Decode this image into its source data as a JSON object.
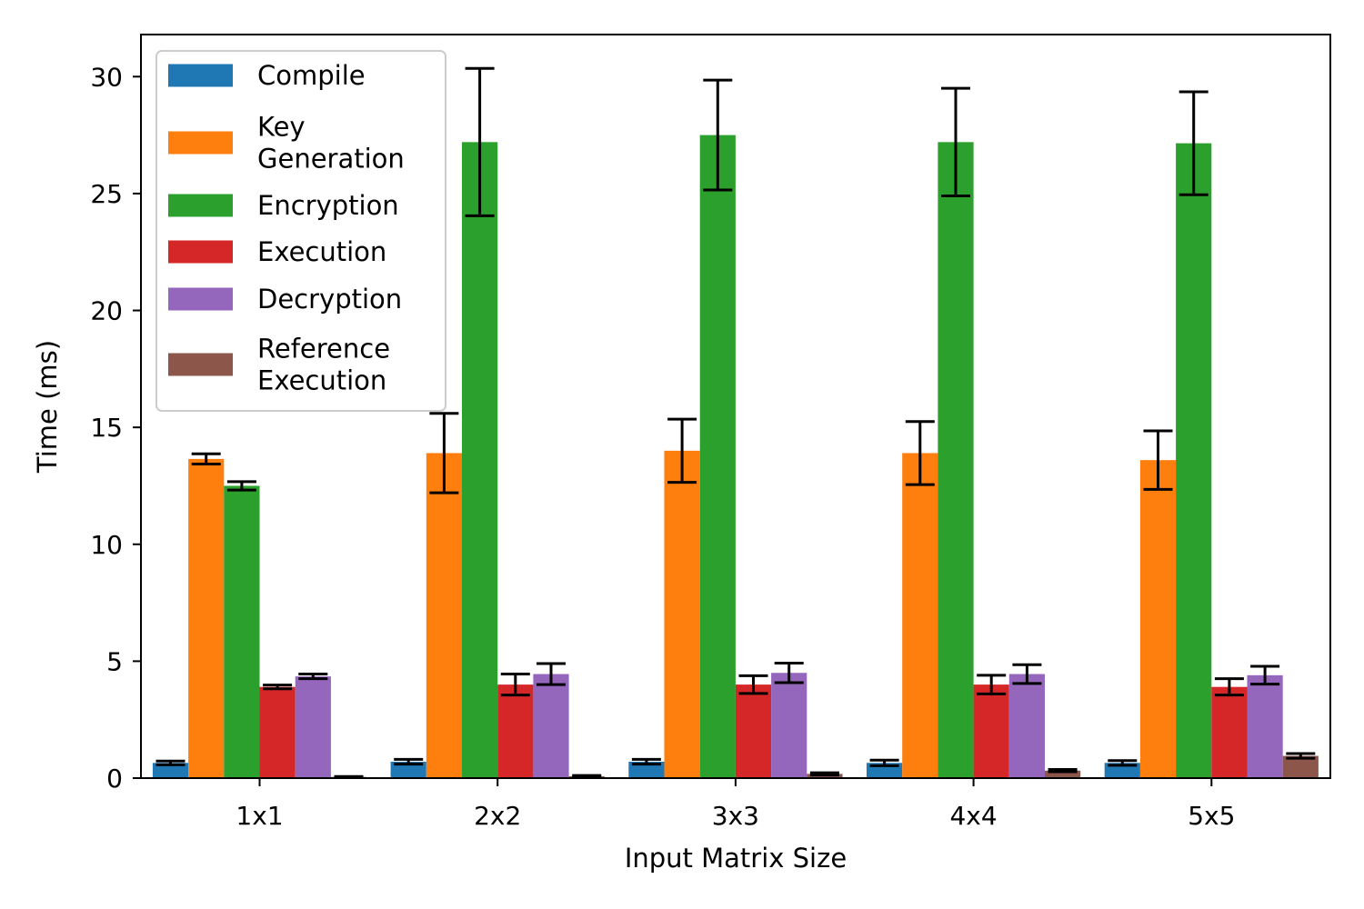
{
  "chart_data": {
    "type": "bar",
    "title": "",
    "xlabel": "Input Matrix Size",
    "ylabel": "Time (ms)",
    "ylim": [
      0,
      31.8
    ],
    "yticks": [
      0,
      5,
      10,
      15,
      20,
      25,
      30
    ],
    "categories": [
      "1x1",
      "2x2",
      "3x3",
      "4x4",
      "5x5"
    ],
    "legend_position": "top-left",
    "grid": false,
    "series": [
      {
        "name": "Compile",
        "legend_lines": [
          "Compile"
        ],
        "color": "#1f77b4",
        "values": [
          0.65,
          0.7,
          0.7,
          0.65,
          0.65
        ],
        "errors": [
          0.08,
          0.1,
          0.1,
          0.12,
          0.1
        ]
      },
      {
        "name": "Key Generation",
        "legend_lines": [
          "Key",
          "Generation"
        ],
        "color": "#ff7f0e",
        "values": [
          13.65,
          13.9,
          14.0,
          13.9,
          13.6
        ],
        "errors": [
          0.22,
          1.7,
          1.35,
          1.35,
          1.25
        ]
      },
      {
        "name": "Encryption",
        "legend_lines": [
          "Encryption"
        ],
        "color": "#2ca02c",
        "values": [
          12.5,
          27.2,
          27.5,
          27.2,
          27.15
        ],
        "errors": [
          0.18,
          3.15,
          2.35,
          2.3,
          2.2
        ]
      },
      {
        "name": "Execution",
        "legend_lines": [
          "Execution"
        ],
        "color": "#d62728",
        "values": [
          3.9,
          4.0,
          4.0,
          4.0,
          3.9
        ],
        "errors": [
          0.08,
          0.45,
          0.38,
          0.4,
          0.35
        ]
      },
      {
        "name": "Decryption",
        "legend_lines": [
          "Decryption"
        ],
        "color": "#9467bd",
        "values": [
          4.35,
          4.45,
          4.5,
          4.45,
          4.4
        ],
        "errors": [
          0.1,
          0.45,
          0.42,
          0.4,
          0.38
        ]
      },
      {
        "name": "Reference Execution",
        "legend_lines": [
          "Reference",
          "Execution"
        ],
        "color": "#8c564b",
        "values": [
          0.05,
          0.08,
          0.18,
          0.32,
          0.95
        ],
        "errors": [
          0.02,
          0.03,
          0.05,
          0.05,
          0.1
        ]
      }
    ]
  }
}
